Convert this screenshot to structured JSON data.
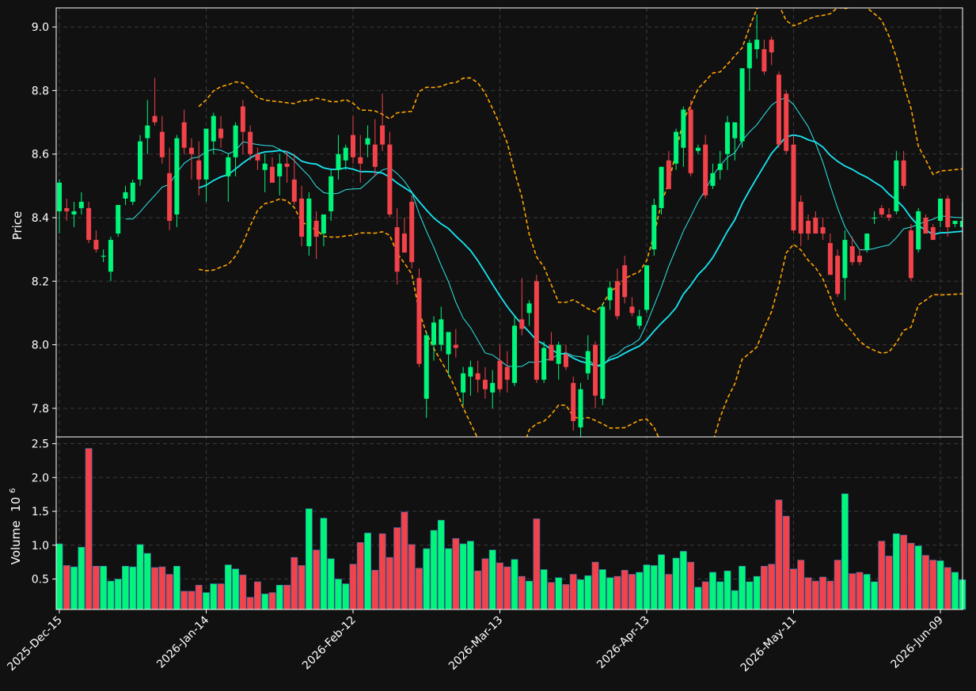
{
  "chart_data": {
    "type": "candlestick",
    "colors": {
      "background": "#111111",
      "up": "#00f57a",
      "down": "#f2424a",
      "bollinger": "#ffa500",
      "ma_short": "#2ee8e8",
      "ma_long": "#17e6f2",
      "grid": "#3a3a3a",
      "frame": "#ffffff",
      "volume_edge": "#3b6fb6"
    },
    "grid": true,
    "price_panel": {
      "ylabel": "Price",
      "ylim": [
        7.71,
        9.06
      ],
      "yticks": [
        7.8,
        8.0,
        8.2,
        8.4,
        8.6,
        8.8,
        9.0
      ],
      "ytick_labels": [
        "7.8",
        "8.0",
        "8.2",
        "8.4",
        "8.6",
        "8.8",
        "9.0"
      ]
    },
    "volume_panel": {
      "ylabel": "Volume",
      "scale_label": "10",
      "scale_exponent": "6",
      "ylim": [
        0.05,
        2.6
      ],
      "yticks": [
        0.5,
        1.0,
        1.5,
        2.0,
        2.5
      ],
      "ytick_labels": [
        "0.5",
        "1.0",
        "1.5",
        "2.0",
        "2.5"
      ]
    },
    "x_axis": {
      "start_date": "2025-12-15",
      "end_date": "2026-06-09",
      "ticks": [
        "2025-Dec-15",
        "2026-Jan-14",
        "2026-Feb-12",
        "2026-Mar-13",
        "2026-Apr-13",
        "2026-May-11",
        "2026-Jun-09"
      ],
      "tick_indices": [
        0,
        20,
        40,
        60,
        80,
        100,
        120
      ]
    },
    "indicators": [
      {
        "type": "moving_average",
        "period": 10
      },
      {
        "type": "moving_average",
        "period": 20
      },
      {
        "type": "bollinger_bands",
        "period": 20,
        "std": 2
      }
    ],
    "ohlcv": [
      [
        8.42,
        8.52,
        8.35,
        8.51,
        1.02
      ],
      [
        8.43,
        8.46,
        8.39,
        8.42,
        0.7
      ],
      [
        8.41,
        8.45,
        8.37,
        8.42,
        0.68
      ],
      [
        8.43,
        8.48,
        8.41,
        8.45,
        0.97
      ],
      [
        8.43,
        8.45,
        8.32,
        8.33,
        2.43
      ],
      [
        8.33,
        8.36,
        8.29,
        8.3,
        0.69
      ],
      [
        8.28,
        8.3,
        8.26,
        8.28,
        0.69
      ],
      [
        8.23,
        8.34,
        8.2,
        8.33,
        0.47
      ],
      [
        8.35,
        8.44,
        8.34,
        8.44,
        0.5
      ],
      [
        8.46,
        8.5,
        8.44,
        8.48,
        0.69
      ],
      [
        8.45,
        8.52,
        8.44,
        8.51,
        0.68
      ],
      [
        8.52,
        8.66,
        8.5,
        8.64,
        1.01
      ],
      [
        8.65,
        8.77,
        8.6,
        8.69,
        0.88
      ],
      [
        8.72,
        8.84,
        8.69,
        8.7,
        0.67
      ],
      [
        8.67,
        8.72,
        8.57,
        8.59,
        0.68
      ],
      [
        8.54,
        8.62,
        8.36,
        8.39,
        0.57
      ],
      [
        8.41,
        8.66,
        8.37,
        8.65,
        0.69
      ],
      [
        8.7,
        8.74,
        8.6,
        8.62,
        0.32
      ],
      [
        8.62,
        8.65,
        8.52,
        8.6,
        0.32
      ],
      [
        8.58,
        8.64,
        8.47,
        8.52,
        0.41
      ],
      [
        8.52,
        8.68,
        8.45,
        8.68,
        0.3
      ],
      [
        8.64,
        8.73,
        8.6,
        8.72,
        0.43
      ],
      [
        8.68,
        8.72,
        8.62,
        8.65,
        0.43
      ],
      [
        8.53,
        8.6,
        8.45,
        8.59,
        0.71
      ],
      [
        8.59,
        8.7,
        8.53,
        8.69,
        0.65
      ],
      [
        8.75,
        8.77,
        8.6,
        8.67,
        0.56
      ],
      [
        8.67,
        8.69,
        8.58,
        8.6,
        0.23
      ],
      [
        8.6,
        8.62,
        8.55,
        8.58,
        0.46
      ],
      [
        8.55,
        8.6,
        8.48,
        8.57,
        0.28
      ],
      [
        8.56,
        8.59,
        8.51,
        8.51,
        0.3
      ],
      [
        8.53,
        8.6,
        8.47,
        8.57,
        0.41
      ],
      [
        8.57,
        8.61,
        8.51,
        8.56,
        0.41
      ],
      [
        8.52,
        8.6,
        8.44,
        8.45,
        0.82
      ],
      [
        8.46,
        8.5,
        8.31,
        8.34,
        0.7
      ],
      [
        8.31,
        8.48,
        8.28,
        8.46,
        1.54
      ],
      [
        8.39,
        8.42,
        8.27,
        8.34,
        0.93
      ],
      [
        8.35,
        8.41,
        8.31,
        8.41,
        1.4
      ],
      [
        8.42,
        8.55,
        8.39,
        8.53,
        0.8
      ],
      [
        8.55,
        8.66,
        8.52,
        8.6,
        0.5
      ],
      [
        8.58,
        8.63,
        8.55,
        8.62,
        0.43
      ],
      [
        8.66,
        8.72,
        8.57,
        8.59,
        0.72
      ],
      [
        8.59,
        8.66,
        8.51,
        8.57,
        1.04
      ],
      [
        8.63,
        8.69,
        8.59,
        8.65,
        1.18
      ],
      [
        8.63,
        8.71,
        8.53,
        8.56,
        0.63
      ],
      [
        8.69,
        8.79,
        8.61,
        8.63,
        1.17
      ],
      [
        8.63,
        8.67,
        8.4,
        8.41,
        0.82
      ],
      [
        8.37,
        8.43,
        8.19,
        8.23,
        1.26
      ],
      [
        8.35,
        8.4,
        8.29,
        8.29,
        1.49
      ],
      [
        8.45,
        8.47,
        8.24,
        8.26,
        1.01
      ],
      [
        8.21,
        8.24,
        7.93,
        7.94,
        0.66
      ],
      [
        7.83,
        8.04,
        7.77,
        8.03,
        0.95
      ],
      [
        8.0,
        8.09,
        7.95,
        8.07,
        1.22
      ],
      [
        8.0,
        8.12,
        7.98,
        8.08,
        1.37
      ],
      [
        7.97,
        8.04,
        7.9,
        8.04,
        0.95
      ],
      [
        8.0,
        8.05,
        7.96,
        7.99,
        1.1
      ],
      [
        7.85,
        7.93,
        7.81,
        7.91,
        1.02
      ],
      [
        7.9,
        7.95,
        7.84,
        7.93,
        1.06
      ],
      [
        7.91,
        7.95,
        7.85,
        7.89,
        0.62
      ],
      [
        7.89,
        7.93,
        7.83,
        7.86,
        0.8
      ],
      [
        7.85,
        7.92,
        7.8,
        7.88,
        0.93
      ],
      [
        7.95,
        8.0,
        7.85,
        7.86,
        0.74
      ],
      [
        7.93,
        7.98,
        7.85,
        7.89,
        0.68
      ],
      [
        7.88,
        8.09,
        7.87,
        8.06,
        0.79
      ],
      [
        8.08,
        8.21,
        8.03,
        8.05,
        0.54
      ],
      [
        8.1,
        8.14,
        8.06,
        8.13,
        0.47
      ],
      [
        8.2,
        8.22,
        7.88,
        7.89,
        1.39
      ],
      [
        7.89,
        8.01,
        7.88,
        7.99,
        0.64
      ],
      [
        8.0,
        8.04,
        7.95,
        7.95,
        0.45
      ],
      [
        7.94,
        8.01,
        7.89,
        8.0,
        0.52
      ],
      [
        7.97,
        8.0,
        7.92,
        7.93,
        0.42
      ],
      [
        7.88,
        7.9,
        7.73,
        7.76,
        0.57
      ],
      [
        7.74,
        7.88,
        7.71,
        7.86,
        0.49
      ],
      [
        7.91,
        8.03,
        7.89,
        7.98,
        0.55
      ],
      [
        8.0,
        8.01,
        7.8,
        7.84,
        0.75
      ],
      [
        7.83,
        8.13,
        7.81,
        8.12,
        0.64
      ],
      [
        8.14,
        8.2,
        8.11,
        8.18,
        0.52
      ],
      [
        8.2,
        8.24,
        8.08,
        8.09,
        0.54
      ],
      [
        8.25,
        8.28,
        8.13,
        8.15,
        0.63
      ],
      [
        8.12,
        8.15,
        8.09,
        8.1,
        0.57
      ],
      [
        8.06,
        8.11,
        8.05,
        8.09,
        0.6
      ],
      [
        8.11,
        8.25,
        8.1,
        8.25,
        0.71
      ],
      [
        8.3,
        8.46,
        8.28,
        8.44,
        0.7
      ],
      [
        8.43,
        8.56,
        8.41,
        8.56,
        0.86
      ],
      [
        8.58,
        8.61,
        8.49,
        8.49,
        0.57
      ],
      [
        8.57,
        8.68,
        8.55,
        8.67,
        0.81
      ],
      [
        8.62,
        8.75,
        8.56,
        8.74,
        0.91
      ],
      [
        8.74,
        8.77,
        8.53,
        8.54,
        0.75
      ],
      [
        8.61,
        8.63,
        8.6,
        8.62,
        0.38
      ],
      [
        8.63,
        8.66,
        8.46,
        8.47,
        0.46
      ],
      [
        8.5,
        8.57,
        8.49,
        8.54,
        0.6
      ],
      [
        8.55,
        8.61,
        8.52,
        8.57,
        0.46
      ],
      [
        8.6,
        8.72,
        8.55,
        8.7,
        0.62
      ],
      [
        8.65,
        8.7,
        8.58,
        8.7,
        0.33
      ],
      [
        8.64,
        8.87,
        8.62,
        8.87,
        0.69
      ],
      [
        8.87,
        8.96,
        8.8,
        8.95,
        0.46
      ],
      [
        8.93,
        9.04,
        8.9,
        8.96,
        0.54
      ],
      [
        8.93,
        8.96,
        8.85,
        8.86,
        0.69
      ],
      [
        8.96,
        8.97,
        8.88,
        8.92,
        0.72
      ],
      [
        8.85,
        8.86,
        8.62,
        8.63,
        1.67
      ],
      [
        8.79,
        8.8,
        8.6,
        8.61,
        1.43
      ],
      [
        8.63,
        8.66,
        8.35,
        8.36,
        0.65
      ],
      [
        8.45,
        8.47,
        8.31,
        8.35,
        0.78
      ],
      [
        8.39,
        8.41,
        8.33,
        8.35,
        0.52
      ],
      [
        8.4,
        8.42,
        8.35,
        8.35,
        0.47
      ],
      [
        8.37,
        8.4,
        8.33,
        8.35,
        0.53
      ],
      [
        8.32,
        8.35,
        8.22,
        8.22,
        0.47
      ],
      [
        8.28,
        8.3,
        8.15,
        8.16,
        0.78
      ],
      [
        8.21,
        8.36,
        8.14,
        8.33,
        1.76
      ],
      [
        8.31,
        8.34,
        8.25,
        8.26,
        0.58
      ],
      [
        8.28,
        8.3,
        8.25,
        8.26,
        0.6
      ],
      [
        8.3,
        8.35,
        8.29,
        8.35,
        0.57
      ],
      [
        8.4,
        8.42,
        8.38,
        8.4,
        0.46
      ],
      [
        8.43,
        8.44,
        8.4,
        8.41,
        1.06
      ],
      [
        8.41,
        8.43,
        8.39,
        8.4,
        0.84
      ],
      [
        8.42,
        8.61,
        8.41,
        8.58,
        1.17
      ],
      [
        8.58,
        8.61,
        8.49,
        8.5,
        1.15
      ],
      [
        8.36,
        8.38,
        8.2,
        8.21,
        1.03
      ],
      [
        8.3,
        8.43,
        8.29,
        8.42,
        0.99
      ],
      [
        8.4,
        8.41,
        8.35,
        8.35,
        0.85
      ],
      [
        8.37,
        8.38,
        8.33,
        8.33,
        0.78
      ],
      [
        8.39,
        8.46,
        8.37,
        8.46,
        0.77
      ],
      [
        8.46,
        8.47,
        8.34,
        8.37,
        0.67
      ],
      [
        8.38,
        8.39,
        8.37,
        8.39,
        0.6
      ],
      [
        8.37,
        8.45,
        8.33,
        8.39,
        0.49
      ]
    ]
  }
}
